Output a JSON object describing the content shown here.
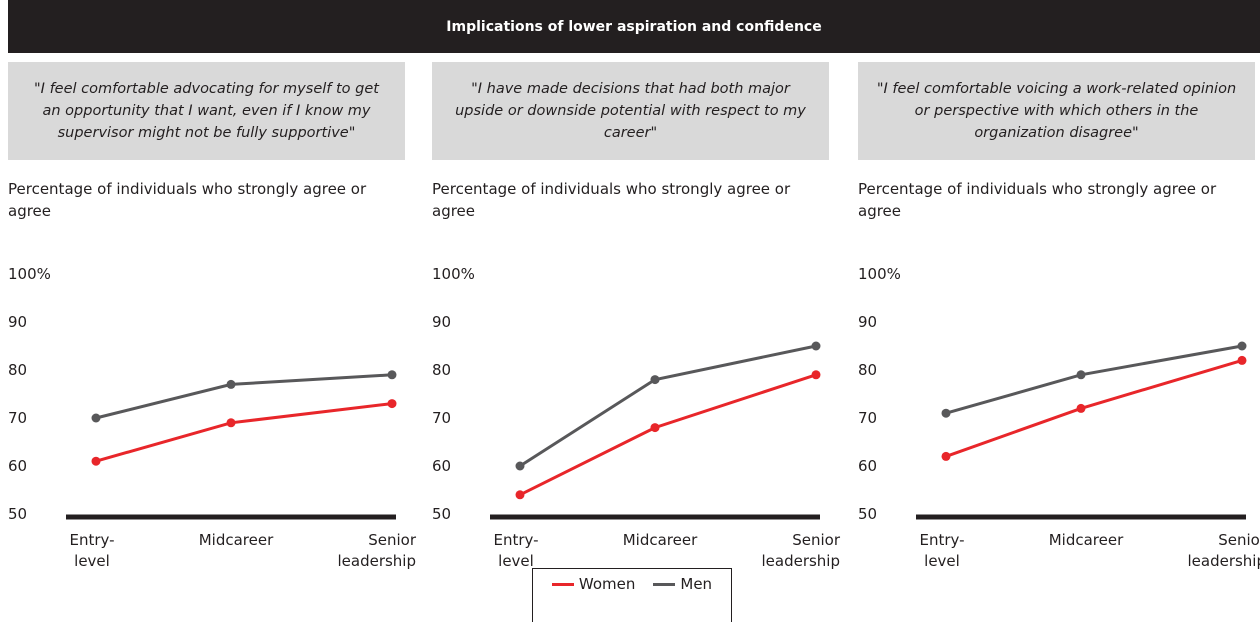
{
  "title": "Implications of lower aspiration and confidence",
  "chart_data": [
    {
      "type": "line",
      "quote": "\"I feel comfortable advocating for myself to get an opportunity that I want, even if I know my supervisor might not be fully supportive\"",
      "axis_label": "Percentage of individuals who strongly agree or agree",
      "categories": [
        "Entry-level",
        "Midcareer",
        "Senior leadership"
      ],
      "series": [
        {
          "name": "Women",
          "color": "#e8262a",
          "values": [
            61,
            69,
            73
          ]
        },
        {
          "name": "Men",
          "color": "#58585a",
          "values": [
            70,
            77,
            79
          ]
        }
      ],
      "ylim": [
        50,
        100
      ],
      "yticks": [
        50,
        60,
        70,
        80,
        90,
        {
          "value": 100,
          "label": "100%"
        }
      ]
    },
    {
      "type": "line",
      "quote": "\"I have made decisions that had both major upside or downside potential with respect to my career\"",
      "axis_label": "Percentage of individuals who strongly agree or agree",
      "categories": [
        "Entry-level",
        "Midcareer",
        "Senior leadership"
      ],
      "series": [
        {
          "name": "Women",
          "color": "#e8262a",
          "values": [
            54,
            68,
            79
          ]
        },
        {
          "name": "Men",
          "color": "#58585a",
          "values": [
            60,
            78,
            85
          ]
        }
      ],
      "ylim": [
        50,
        100
      ],
      "yticks": [
        50,
        60,
        70,
        80,
        90,
        {
          "value": 100,
          "label": "100%"
        }
      ]
    },
    {
      "type": "line",
      "quote": "\"I feel comfortable voicing a work-related opinion or perspective with which others in the organization disagree\"",
      "axis_label": "Percentage of individuals who strongly agree or agree",
      "categories": [
        "Entry-level",
        "Midcareer",
        "Senior leadership"
      ],
      "series": [
        {
          "name": "Women",
          "color": "#e8262a",
          "values": [
            62,
            72,
            82
          ]
        },
        {
          "name": "Men",
          "color": "#58585a",
          "values": [
            71,
            79,
            85
          ]
        }
      ],
      "ylim": [
        50,
        100
      ],
      "yticks": [
        50,
        60,
        70,
        80,
        90,
        {
          "value": 100,
          "label": "100%"
        }
      ]
    }
  ]
}
